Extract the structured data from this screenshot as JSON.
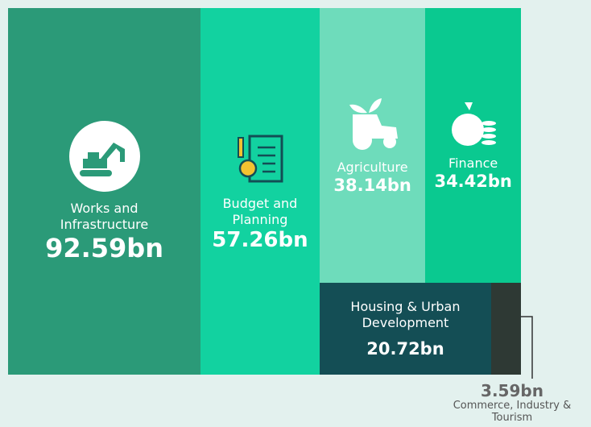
{
  "chart_data": {
    "type": "treemap",
    "categories": [
      "Works and Infrastructure",
      "Budget and Planning",
      "Agriculture",
      "Finance",
      "Housing & Urban Development",
      "Commerce, Industry & Tourism"
    ],
    "values": [
      92.59,
      57.26,
      38.14,
      34.42,
      20.72,
      3.59
    ],
    "value_labels": [
      "92.59bn",
      "57.26bn",
      "38.14bn",
      "34.42bn",
      "20.72bn",
      "3.59bn"
    ],
    "colors": [
      "#2b9a78",
      "#12d2a0",
      "#6edcbb",
      "#0ac990",
      "#144e55",
      "#2e3934"
    ]
  }
}
